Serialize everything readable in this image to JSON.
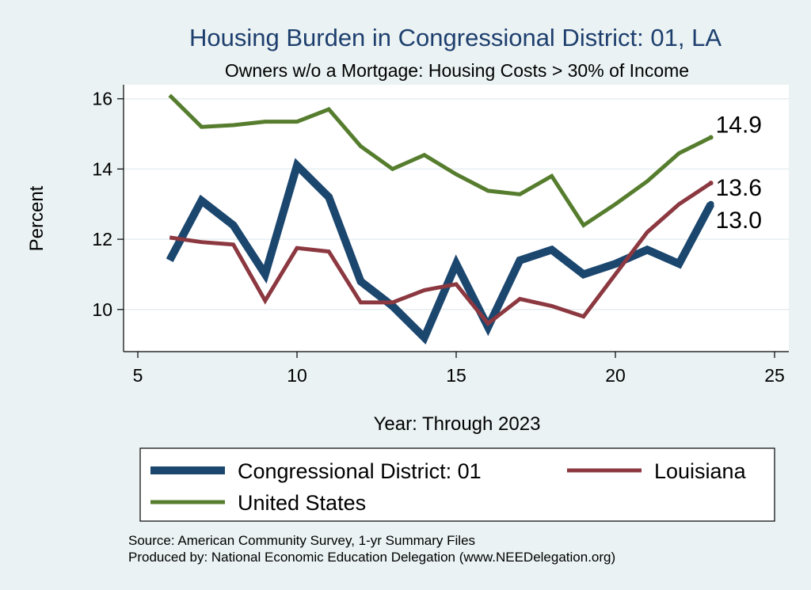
{
  "chart_data": {
    "type": "line",
    "title": "Housing Burden in Congressional District:  01, LA",
    "subtitle": "Owners w/o a Mortgage: Housing Costs > 30% of Income",
    "xlabel": "Year: Through 2023",
    "ylabel": "Percent",
    "xlim": [
      5,
      25
    ],
    "ylim": [
      8.8,
      16.4
    ],
    "xticks": [
      5,
      10,
      15,
      20,
      25
    ],
    "yticks": [
      10,
      12,
      14,
      16
    ],
    "grid": true,
    "legend_position": "bottom",
    "x": [
      6,
      7,
      8,
      9,
      10,
      11,
      12,
      13,
      14,
      15,
      16,
      17,
      18,
      19,
      20,
      21,
      22,
      23
    ],
    "series": [
      {
        "name": "Congressional District:  01",
        "color": "#1b466e",
        "values": [
          11.4,
          13.1,
          12.4,
          11.0,
          14.1,
          13.2,
          10.8,
          10.1,
          9.2,
          11.3,
          9.5,
          11.4,
          11.7,
          11.0,
          11.3,
          11.7,
          11.3,
          13.0
        ],
        "end_label": "13.0"
      },
      {
        "name": "Louisiana",
        "color": "#8c3840",
        "values": [
          12.05,
          11.92,
          11.85,
          10.25,
          11.75,
          11.65,
          10.2,
          10.2,
          10.55,
          10.72,
          9.6,
          10.3,
          10.1,
          9.8,
          11.0,
          12.2,
          13.0,
          13.6
        ],
        "end_label": "13.6"
      },
      {
        "name": "United States",
        "color": "#567d2e",
        "values": [
          16.1,
          15.2,
          15.25,
          15.35,
          15.35,
          15.7,
          14.65,
          14.0,
          14.4,
          13.85,
          13.38,
          13.28,
          13.8,
          12.4,
          13.0,
          13.65,
          14.45,
          14.9
        ],
        "end_label": "14.9"
      }
    ]
  },
  "footer": {
    "source": "Source: American Community Survey, 1-yr Summary Files",
    "produced_by": "Produced by: National Economic Education Delegation (www.NEEDelegation.org)"
  }
}
